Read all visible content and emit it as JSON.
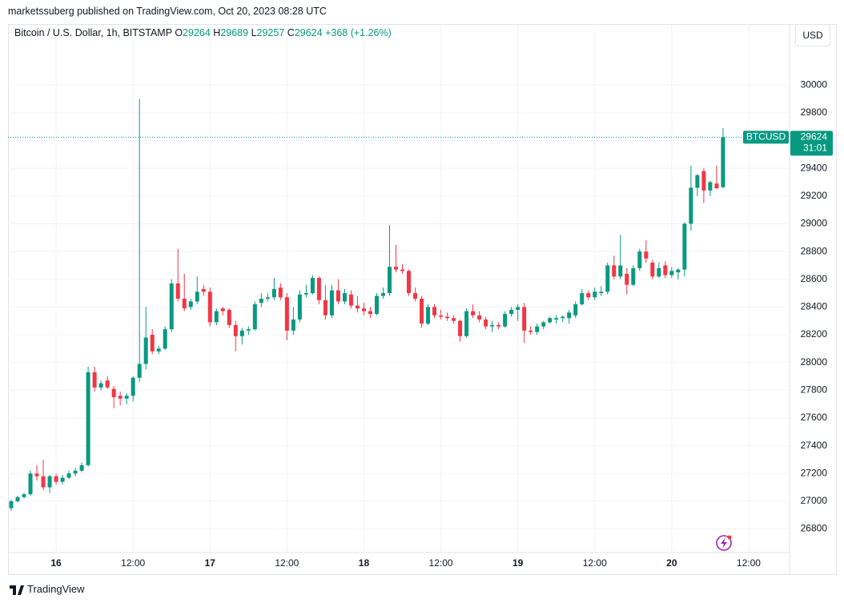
{
  "publisher_line": "marketssuberg published on TradingView.com, Oct 20, 2023 08:28 UTC",
  "currency": "USD",
  "footer": "TradingView",
  "chart_data": {
    "type": "candlestick",
    "title": "Bitcoin / U.S. Dollar, 1h, BITSTAMP",
    "ohlc_labels": [
      "O",
      "H",
      "L",
      "C"
    ],
    "change": "+368",
    "change_pct": "(+1.26%)",
    "ticker": "BTCUSD",
    "countdown": "31:01",
    "up_color": "#089981",
    "down_color": "#f23645",
    "grid": true,
    "ylim": [
      26630,
      30440
    ],
    "yticks": [
      26800,
      27000,
      27200,
      27400,
      27600,
      27800,
      28000,
      28200,
      28400,
      28600,
      28800,
      29000,
      29200,
      29400,
      29600,
      29800,
      30000
    ],
    "xlim": [
      -0.5,
      121.375
    ],
    "xticks": [
      {
        "value": 7,
        "label": "16"
      },
      {
        "value": 19,
        "label": "12:00"
      },
      {
        "value": 31,
        "label": "17"
      },
      {
        "value": 43,
        "label": "12:00"
      },
      {
        "value": 55,
        "label": "18"
      },
      {
        "value": 67,
        "label": "12:00"
      },
      {
        "value": 79,
        "label": "19"
      },
      {
        "value": 91,
        "label": "12:00"
      },
      {
        "value": 103,
        "label": "20"
      },
      {
        "value": 115,
        "label": "12:00"
      }
    ],
    "ohlc": [
      [
        26950,
        27010,
        26930,
        27000
      ],
      [
        27000,
        27040,
        26990,
        27030
      ],
      [
        27030,
        27060,
        27020,
        27050
      ],
      [
        27050,
        27220,
        27040,
        27200
      ],
      [
        27200,
        27260,
        27150,
        27180
      ],
      [
        27180,
        27300,
        27080,
        27100
      ],
      [
        27100,
        27190,
        27060,
        27180
      ],
      [
        27180,
        27200,
        27120,
        27140
      ],
      [
        27140,
        27190,
        27120,
        27170
      ],
      [
        27170,
        27220,
        27160,
        27200
      ],
      [
        27200,
        27240,
        27180,
        27220
      ],
      [
        27220,
        27280,
        27210,
        27260
      ],
      [
        27260,
        27970,
        27250,
        27930
      ],
      [
        27930,
        27970,
        27790,
        27820
      ],
      [
        27820,
        27870,
        27800,
        27850
      ],
      [
        27870,
        27900,
        27810,
        27820
      ],
      [
        27810,
        27830,
        27670,
        27750
      ],
      [
        27760,
        27790,
        27690,
        27740
      ],
      [
        27740,
        27780,
        27700,
        27760
      ],
      [
        27760,
        27900,
        27720,
        27890
      ],
      [
        27890,
        29900,
        27860,
        27990
      ],
      [
        27990,
        28400,
        27950,
        28180
      ],
      [
        28200,
        28240,
        28060,
        28080
      ],
      [
        28080,
        28120,
        28060,
        28100
      ],
      [
        28100,
        28260,
        28090,
        28240
      ],
      [
        28240,
        28600,
        28220,
        28570
      ],
      [
        28570,
        28820,
        28440,
        28460
      ],
      [
        28460,
        28640,
        28370,
        28390
      ],
      [
        28400,
        28460,
        28380,
        28440
      ],
      [
        28440,
        28620,
        28420,
        28510
      ],
      [
        28530,
        28560,
        28480,
        28510
      ],
      [
        28510,
        28540,
        28260,
        28290
      ],
      [
        28290,
        28390,
        28270,
        28370
      ],
      [
        28390,
        28400,
        28340,
        28370
      ],
      [
        28380,
        28390,
        28250,
        28270
      ],
      [
        28270,
        28300,
        28080,
        28190
      ],
      [
        28190,
        28250,
        28130,
        28230
      ],
      [
        28230,
        28260,
        28200,
        28240
      ],
      [
        28240,
        28440,
        28230,
        28420
      ],
      [
        28430,
        28500,
        28400,
        28460
      ],
      [
        28460,
        28500,
        28440,
        28470
      ],
      [
        28470,
        28610,
        28450,
        28530
      ],
      [
        28540,
        28570,
        28450,
        28470
      ],
      [
        28470,
        28500,
        28160,
        28230
      ],
      [
        28230,
        28400,
        28200,
        28310
      ],
      [
        28310,
        28520,
        28290,
        28490
      ],
      [
        28490,
        28560,
        28470,
        28500
      ],
      [
        28500,
        28630,
        28490,
        28610
      ],
      [
        28610,
        28620,
        28420,
        28450
      ],
      [
        28450,
        28560,
        28310,
        28340
      ],
      [
        28340,
        28560,
        28320,
        28520
      ],
      [
        28520,
        28600,
        28420,
        28440
      ],
      [
        28440,
        28530,
        28420,
        28500
      ],
      [
        28490,
        28520,
        28390,
        28410
      ],
      [
        28410,
        28480,
        28360,
        28390
      ],
      [
        28390,
        28430,
        28340,
        28370
      ],
      [
        28370,
        28400,
        28320,
        28350
      ],
      [
        28350,
        28500,
        28340,
        28480
      ],
      [
        28480,
        28540,
        28460,
        28500
      ],
      [
        28500,
        28990,
        28480,
        28690
      ],
      [
        28690,
        28850,
        28650,
        28670
      ],
      [
        28670,
        28710,
        28640,
        28660
      ],
      [
        28660,
        28670,
        28480,
        28500
      ],
      [
        28500,
        28540,
        28440,
        28460
      ],
      [
        28460,
        28480,
        28250,
        28280
      ],
      [
        28280,
        28420,
        28270,
        28400
      ],
      [
        28400,
        28420,
        28320,
        28340
      ],
      [
        28340,
        28380,
        28310,
        28330
      ],
      [
        28330,
        28360,
        28300,
        28320
      ],
      [
        28320,
        28340,
        28280,
        28300
      ],
      [
        28300,
        28310,
        28150,
        28190
      ],
      [
        28190,
        28390,
        28180,
        28370
      ],
      [
        28370,
        28420,
        28320,
        28340
      ],
      [
        28340,
        28370,
        28290,
        28310
      ],
      [
        28310,
        28330,
        28240,
        28260
      ],
      [
        28260,
        28300,
        28220,
        28270
      ],
      [
        28270,
        28290,
        28240,
        28260
      ],
      [
        28260,
        28370,
        28250,
        28350
      ],
      [
        28350,
        28400,
        28330,
        28380
      ],
      [
        28380,
        28420,
        28300,
        28400
      ],
      [
        28400,
        28430,
        28140,
        28230
      ],
      [
        28230,
        28260,
        28200,
        28220
      ],
      [
        28220,
        28280,
        28200,
        28260
      ],
      [
        28260,
        28300,
        28240,
        28290
      ],
      [
        28290,
        28330,
        28280,
        28320
      ],
      [
        28310,
        28340,
        28280,
        28320
      ],
      [
        28320,
        28340,
        28290,
        28330
      ],
      [
        28320,
        28380,
        28280,
        28360
      ],
      [
        28340,
        28440,
        28320,
        28420
      ],
      [
        28420,
        28530,
        28410,
        28500
      ],
      [
        28500,
        28520,
        28450,
        28470
      ],
      [
        28470,
        28540,
        28450,
        28510
      ],
      [
        28500,
        28550,
        28480,
        28510
      ],
      [
        28510,
        28720,
        28490,
        28700
      ],
      [
        28700,
        28770,
        28600,
        28620
      ],
      [
        28620,
        28920,
        28600,
        28700
      ],
      [
        28640,
        28680,
        28490,
        28560
      ],
      [
        28560,
        28700,
        28550,
        28680
      ],
      [
        28680,
        28820,
        28660,
        28800
      ],
      [
        28800,
        28880,
        28720,
        28750
      ],
      [
        28720,
        28740,
        28600,
        28620
      ],
      [
        28620,
        28720,
        28610,
        28680
      ],
      [
        28700,
        28730,
        28610,
        28630
      ],
      [
        28630,
        28690,
        28610,
        28660
      ],
      [
        28650,
        28680,
        28600,
        28670
      ],
      [
        28670,
        29010,
        28620,
        29000
      ],
      [
        29000,
        29420,
        28950,
        29260
      ],
      [
        29260,
        29360,
        29200,
        29350
      ],
      [
        29380,
        29400,
        29150,
        29240
      ],
      [
        29240,
        29310,
        29200,
        29300
      ],
      [
        29290,
        29420,
        29250,
        29256
      ],
      [
        29264,
        29689,
        29257,
        29624
      ]
    ]
  }
}
